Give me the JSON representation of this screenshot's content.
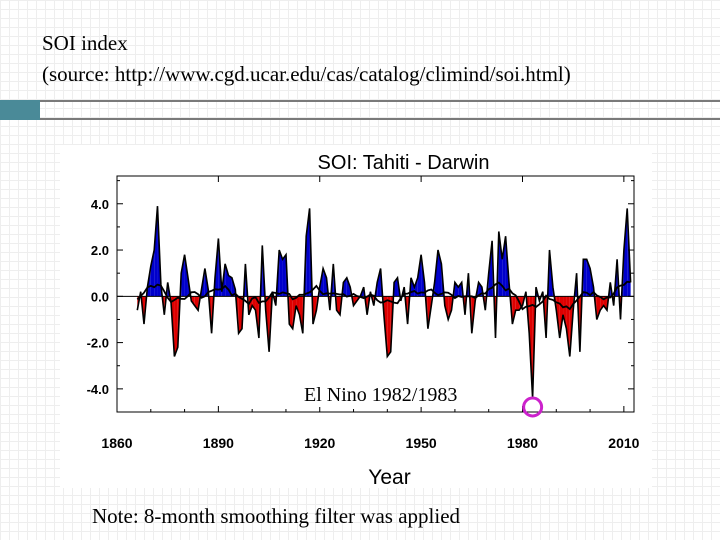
{
  "slide": {
    "title_line1": "SOI index",
    "title_line2": "(source: http://www.cgd.ucar.edu/cas/catalog/climind/soi.html)",
    "annotation": "El Nino 1982/1983",
    "note": "Note: 8-month smoothing filter was applied",
    "accent_color": "#4a8a98",
    "highlight_color": "#cc22cc"
  },
  "chart_data": {
    "type": "area",
    "title": "SOI: Tahiti - Darwin",
    "xlabel": "Year",
    "ylabel": "",
    "xlim": [
      1860,
      2013
    ],
    "ylim": [
      -5.0,
      5.2
    ],
    "xticks": [
      1860,
      1890,
      1920,
      1950,
      1980,
      2010
    ],
    "yticks": [
      4.0,
      2.0,
      0.0,
      -2.0,
      -4.0
    ],
    "ytick_labels": [
      "4.0",
      "2.0",
      "0.0",
      "-2.0",
      "-4.0"
    ],
    "positive_color": "#0000cc",
    "negative_color": "#dd0000",
    "grid": false,
    "highlight_year": 1983,
    "series": [
      {
        "values_x": [
          1866,
          1867,
          1868,
          1869,
          1870,
          1871,
          1872,
          1873,
          1874,
          1875,
          1876,
          1877,
          1878,
          1879,
          1880,
          1881,
          1882,
          1883,
          1884,
          1885,
          1886,
          1887,
          1888,
          1889,
          1890,
          1891,
          1892,
          1893,
          1894,
          1895,
          1896,
          1897,
          1898,
          1899,
          1900,
          1901,
          1902,
          1903,
          1904,
          1905,
          1906,
          1907,
          1908,
          1909,
          1910,
          1911,
          1912,
          1913,
          1914,
          1915,
          1916,
          1917,
          1918,
          1919,
          1920,
          1921,
          1922,
          1923,
          1924,
          1925,
          1926,
          1927,
          1928,
          1929,
          1930,
          1931,
          1932,
          1933,
          1934,
          1935,
          1936,
          1937,
          1938,
          1939,
          1940,
          1941,
          1942,
          1943,
          1944,
          1945,
          1946,
          1947,
          1948,
          1949,
          1950,
          1951,
          1952,
          1953,
          1954,
          1955,
          1956,
          1957,
          1958,
          1959,
          1960,
          1961,
          1962,
          1963,
          1964,
          1965,
          1966,
          1967,
          1968,
          1969,
          1970,
          1971,
          1972,
          1973,
          1974,
          1975,
          1976,
          1977,
          1978,
          1979,
          1980,
          1981,
          1982,
          1983,
          1984,
          1985,
          1986,
          1987,
          1988,
          1989,
          1990,
          1991,
          1992,
          1993,
          1994,
          1995,
          1996,
          1997,
          1998,
          1999,
          2000,
          2001,
          2002,
          2003,
          2004,
          2005,
          2006,
          2007,
          2008,
          2009,
          2010,
          2011,
          2012
        ],
        "values_y": [
          -0.6,
          0.2,
          -1.2,
          0.4,
          1.3,
          2.0,
          3.9,
          0.5,
          -0.8,
          0.6,
          -0.3,
          -2.6,
          -2.2,
          1.0,
          1.8,
          0.8,
          -0.2,
          -0.4,
          -0.6,
          0.3,
          1.2,
          0.3,
          -1.6,
          0.8,
          2.5,
          0.2,
          1.4,
          0.9,
          0.8,
          0.3,
          -1.6,
          -1.4,
          1.4,
          -0.8,
          -0.4,
          -0.6,
          -1.8,
          2.2,
          -0.6,
          -2.4,
          0.2,
          -0.4,
          2.0,
          1.6,
          1.8,
          -1.2,
          -1.4,
          -0.4,
          -0.8,
          -1.6,
          2.6,
          3.8,
          -1.2,
          -0.6,
          0.4,
          1.2,
          0.8,
          -0.6,
          1.4,
          -0.6,
          -0.8,
          0.6,
          0.8,
          0.4,
          -0.4,
          -0.2,
          0.0,
          0.4,
          -0.8,
          0.2,
          -0.4,
          0.6,
          1.2,
          -0.8,
          -2.6,
          -2.4,
          0.6,
          0.8,
          -0.2,
          0.4,
          -1.2,
          0.8,
          0.4,
          0.8,
          1.8,
          0.6,
          -1.4,
          -0.4,
          0.6,
          2.0,
          1.4,
          -0.4,
          -1.0,
          -0.6,
          0.6,
          0.4,
          0.6,
          -0.8,
          1.0,
          -1.6,
          -0.2,
          0.6,
          0.4,
          -0.6,
          1.0,
          2.4,
          -1.8,
          2.8,
          1.6,
          2.6,
          0.6,
          -1.2,
          -0.6,
          -0.6,
          -0.4,
          0.2,
          -1.6,
          -4.4,
          0.4,
          -0.2,
          0.2,
          -1.8,
          2.0,
          0.4,
          -0.6,
          -1.8,
          -0.8,
          -1.4,
          -2.6,
          -0.6,
          1.0,
          -2.4,
          1.6,
          1.6,
          1.2,
          0.4,
          -1.0,
          -0.6,
          -0.4,
          -0.6,
          0.6,
          -0.4,
          1.6,
          -1.0,
          2.0,
          3.8,
          0.6
        ]
      }
    ]
  }
}
